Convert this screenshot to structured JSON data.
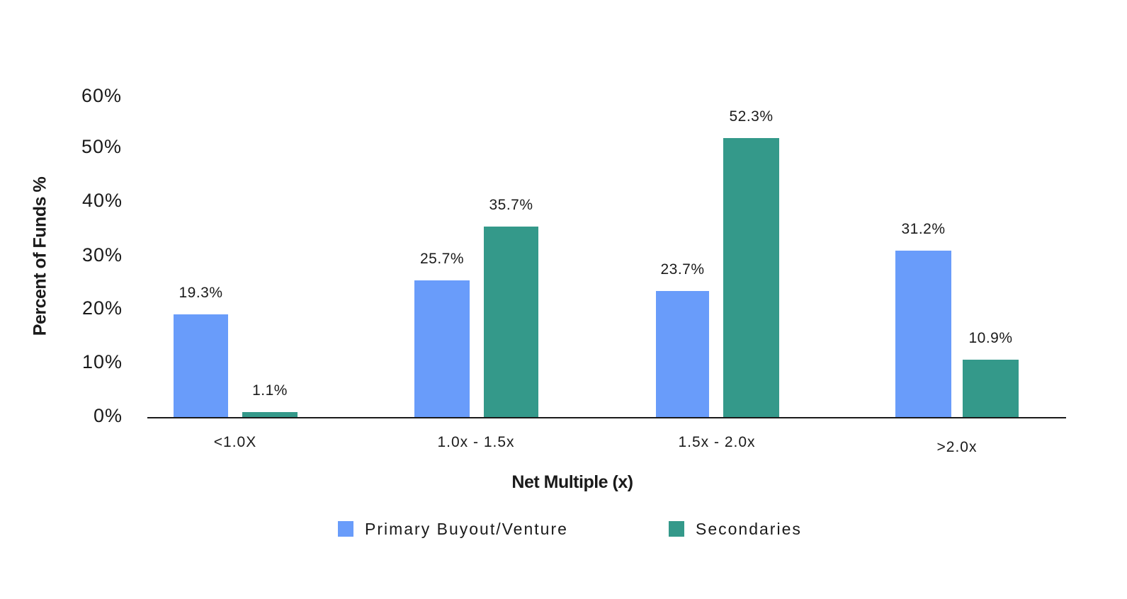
{
  "chart_data": {
    "type": "bar",
    "title": "",
    "xlabel": "Net Multiple (x)",
    "ylabel": "Percent of Funds %",
    "ylim": [
      0,
      60
    ],
    "yticks": [
      "0%",
      "10%",
      "20%",
      "30%",
      "40%",
      "50%",
      "60%"
    ],
    "grid": false,
    "legend_position": "bottom",
    "categories": [
      "<1.0X",
      "1.0x - 1.5x",
      "1.5x - 2.0x",
      ">2.0x"
    ],
    "series": [
      {
        "name": "Primary Buyout/Venture",
        "color": "#699CFA",
        "values": [
          19.3,
          25.7,
          23.7,
          31.2
        ],
        "labels": [
          "19.3%",
          "25.7%",
          "23.7%",
          "31.2%"
        ]
      },
      {
        "name": "Secondaries",
        "color": "#34998A",
        "values": [
          1.1,
          35.7,
          52.3,
          10.9
        ],
        "labels": [
          "1.1%",
          "35.7%",
          "52.3%",
          "10.9%"
        ]
      }
    ]
  },
  "axis": {
    "ylabel": "Percent of Funds %",
    "xlabel": "Net Multiple (x)",
    "yticks": [
      "60%",
      "50%",
      "40%",
      "30%",
      "20%",
      "10%",
      "0%"
    ]
  },
  "categories": [
    "<1.0X",
    "1.0x - 1.5x",
    "1.5x - 2.0x",
    ">2.0x"
  ],
  "legend": [
    {
      "label": "Primary Buyout/Venture",
      "color": "#699CFA"
    },
    {
      "label": "Secondaries",
      "color": "#34998A"
    }
  ],
  "bars": {
    "primary": [
      "19.3%",
      "25.7%",
      "23.7%",
      "31.2%"
    ],
    "secondaries": [
      "1.1%",
      "35.7%",
      "52.3%",
      "10.9%"
    ]
  }
}
